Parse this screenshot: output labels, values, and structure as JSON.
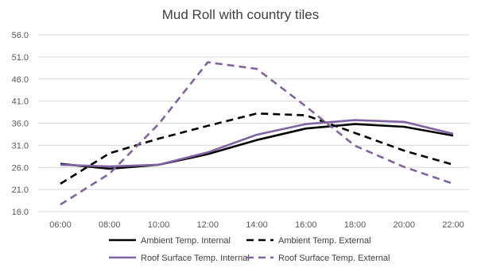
{
  "chart_data": {
    "type": "line",
    "title": "Mud Roll with country tiles",
    "xlabel": "",
    "ylabel": "",
    "x": [
      "06:00",
      "08:00",
      "10:00",
      "12:00",
      "14:00",
      "16:00",
      "18:00",
      "20:00",
      "22:00"
    ],
    "y_ticks": [
      "16.0",
      "21.0",
      "26.0",
      "31.0",
      "36.0",
      "41.0",
      "46.0",
      "51.0",
      "56.0"
    ],
    "ylim": [
      16,
      56
    ],
    "grid": true,
    "legend_position": "bottom",
    "series": [
      {
        "name": "Ambient Temp. Internal",
        "color": "#000000",
        "dash": "solid",
        "values": [
          26.8,
          25.7,
          26.6,
          29.0,
          32.2,
          34.8,
          35.8,
          35.2,
          33.2
        ]
      },
      {
        "name": "Ambient Temp. External",
        "color": "#000000",
        "dash": "dashed",
        "values": [
          22.3,
          29.2,
          32.5,
          35.4,
          38.2,
          37.8,
          33.8,
          29.8,
          26.6
        ]
      },
      {
        "name": "Roof Surface Temp. Internal",
        "color": "#8064a2",
        "dash": "solid",
        "values": [
          26.6,
          26.2,
          26.6,
          29.4,
          33.4,
          35.8,
          36.7,
          36.3,
          33.6
        ]
      },
      {
        "name": "Roof Surface Temp. External",
        "color": "#8064a2",
        "dash": "dashed",
        "values": [
          17.6,
          24.6,
          35.8,
          49.8,
          48.3,
          39.8,
          30.9,
          26.1,
          22.3
        ]
      }
    ]
  }
}
